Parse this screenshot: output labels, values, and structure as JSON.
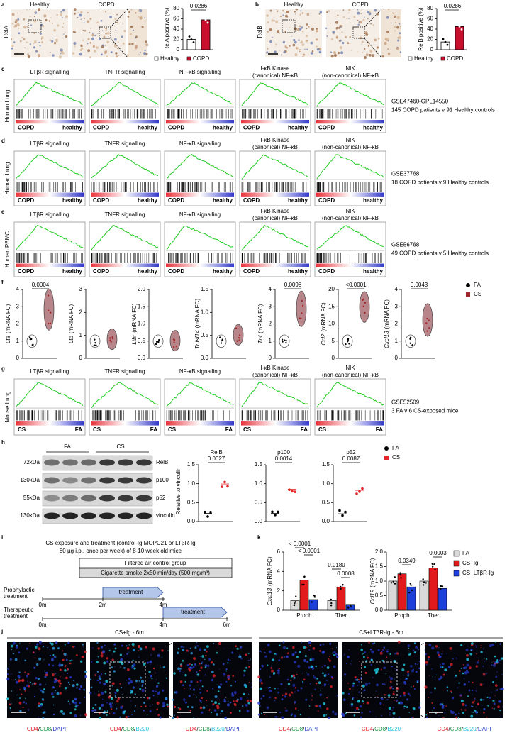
{
  "a": {
    "label": "a",
    "row_label": "RelA",
    "image_titles": [
      "Healthy",
      "COPD"
    ],
    "ylabel": "RelA positive (%)",
    "ylim": [
      0,
      80
    ],
    "yticks": [
      0,
      20,
      40,
      60,
      80
    ],
    "series": [
      {
        "name": "Healthy",
        "color": "#ffffff",
        "value": 20
      },
      {
        "name": "COPD",
        "color": "#c8102e",
        "value": 58
      }
    ],
    "pvalue": "0.0286"
  },
  "b": {
    "label": "b",
    "row_label": "RelB",
    "image_titles": [
      "Healthy",
      "COPD"
    ],
    "ylabel": "RelB positive (%)",
    "ylim": [
      0,
      80
    ],
    "yticks": [
      0,
      20,
      40,
      60,
      80
    ],
    "series": [
      {
        "name": "Healthy",
        "color": "#ffffff",
        "value": 15
      },
      {
        "name": "COPD",
        "color": "#c8102e",
        "value": 45
      }
    ],
    "pvalue": "0.0286"
  },
  "c": {
    "label": "c",
    "row_label": "Human Lung",
    "titles": [
      [
        "LTβR signalling"
      ],
      [
        "TNFR signalling"
      ],
      [
        "NF-κB signalling"
      ],
      [
        "I-κB Kinase",
        "(canonical) NF-κB"
      ],
      [
        "NIK",
        "(non-canonical) NF-κB"
      ]
    ],
    "groups": [
      "COPD",
      "healthy"
    ],
    "dataset": "GSE47460-GPL14550",
    "description": "145 COPD patients v 91 Healthy controls"
  },
  "d": {
    "label": "d",
    "row_label": "Human Lung",
    "titles": [
      [
        "LTβR signalling"
      ],
      [
        "TNFR signalling"
      ],
      [
        "NF-κB signalling"
      ],
      [
        "I-κB Kinase",
        "(canonical) NF-κB"
      ],
      [
        "NIK",
        "(non-canonical) NF-κB"
      ]
    ],
    "groups": [
      "COPD",
      "healthy"
    ],
    "dataset": "GSE37768",
    "description": "18 COPD patients v 9 Healthy controls"
  },
  "e": {
    "label": "e",
    "row_label": "Human PBMC",
    "titles": [
      [
        "LTβR signalling"
      ],
      [
        "TNFR signalling"
      ],
      [
        "NF-κB signalling"
      ],
      [
        "I-κB Kinase",
        "(canonical) NF-κB"
      ],
      [
        "NIK",
        "(non-canonical) NF-κB"
      ]
    ],
    "groups": [
      "COPD",
      "healthy"
    ],
    "dataset": "GSE56768",
    "description": "49 COPD patients v 5 Healthy controls"
  },
  "f": {
    "label": "f",
    "unit": "(mRNA FC)",
    "legend": [
      {
        "name": "FA",
        "color": "#000000"
      },
      {
        "name": "CS",
        "color": "#a0282c"
      }
    ],
    "plots": [
      {
        "gene": "Lta",
        "yticks": [
          0,
          1,
          2,
          3,
          4
        ],
        "pvalue": "0.0004"
      },
      {
        "gene": "Ltb",
        "yticks": [
          0,
          1,
          2,
          3
        ]
      },
      {
        "gene": "Ltbr",
        "yticks": [
          {
            "value": 0,
            "label": "0.0"
          },
          {
            "value": 0.5,
            "label": "0.5"
          },
          {
            "value": 1,
            "label": "1.0"
          },
          {
            "value": 1.5,
            "label": "1.5"
          },
          {
            "value": 2,
            "label": "2.0"
          }
        ]
      },
      {
        "gene": "Tnfsf14",
        "yticks": [
          {
            "value": 0,
            "label": "0.0"
          },
          {
            "value": 0.5,
            "label": "0.5"
          },
          {
            "value": 1,
            "label": "1.0"
          },
          {
            "value": 1.5,
            "label": "1.5"
          }
        ]
      },
      {
        "gene": "Tnf",
        "yticks": [
          0,
          1,
          2,
          3,
          4
        ],
        "pvalue": "0.0098"
      },
      {
        "gene": "Ccl2",
        "yticks": [
          0,
          5,
          10,
          15,
          20
        ],
        "pvalue": "<0.0001"
      },
      {
        "gene": "Cxcl13",
        "yticks": [
          0,
          1,
          2,
          3,
          4
        ],
        "pvalue": "0.0043"
      }
    ]
  },
  "g": {
    "label": "g",
    "row_label": "Mouse Lung",
    "titles": [
      [
        "LTβR signalling"
      ],
      [
        "TNFR signalling"
      ],
      [
        "NF-κB signalling"
      ],
      [
        "I-κB Kinase",
        "(canonical) NF-κB"
      ],
      [
        "NIK",
        "(non-canonical) NF-κB"
      ]
    ],
    "groups": [
      "CS",
      "FA"
    ],
    "dataset": "GSE52509",
    "description": "3 FA v 6 CS-exposed mice"
  },
  "h": {
    "label": "h",
    "groups": [
      "FA",
      "CS"
    ],
    "markers": [
      "72kDa",
      "130kDa",
      "55kDa",
      "130kDa"
    ],
    "proteins": [
      "RelB",
      "p100",
      "p52",
      "vinculin"
    ],
    "ylabel": "Relative to vinculin",
    "ylim": [
      0,
      1.5
    ],
    "yticks": [
      {
        "value": 0,
        "label": "0.0"
      },
      {
        "value": 0.5,
        "label": "0.5"
      },
      {
        "value": 1,
        "label": "1.0"
      },
      {
        "value": 1.5,
        "label": "1.5"
      }
    ],
    "plots": [
      {
        "title": "RelB",
        "pvalue": "0.0027"
      },
      {
        "title": "p100",
        "pvalue": "0.0014"
      },
      {
        "title": "p52",
        "pvalue": "0.0087"
      }
    ],
    "legend": [
      {
        "name": "FA",
        "color": "#000000"
      },
      {
        "name": "CS",
        "color": "#e3262b"
      }
    ]
  },
  "i": {
    "label": "i",
    "heading": [
      "CS exposure and treatment (control-Ig MOPC21 or LTβR-Ig",
      "80 µg i.p., once per week) of 8-10 week old mice"
    ],
    "boxes": [
      "Filtered air control group",
      "Cigarette smoke 2x50 min/day (500 mg/m³)"
    ],
    "schemes": [
      {
        "name": [
          "Prophylactic",
          "treatment"
        ],
        "times": [
          "0m",
          "2m",
          "4m"
        ],
        "arrow": "treatment"
      },
      {
        "name": [
          "Therapeutic",
          "treatment"
        ],
        "times": [
          "0m",
          "4m",
          "6m"
        ],
        "arrow": "treatment"
      }
    ]
  },
  "k": {
    "label": "k",
    "categories": [
      "Proph.",
      "Ther."
    ],
    "series": [
      {
        "name": "FA",
        "color": "#d9d9d9"
      },
      {
        "name": "CS+Ig",
        "color": "#e31a1c"
      },
      {
        "name": "CS+LTβR-Ig",
        "color": "#1f3fdb"
      }
    ],
    "charts": [
      {
        "gene": "Cxcl13",
        "unit": "(mRNA FC)",
        "ylim": [
          0,
          6
        ],
        "yticks": [
          0,
          2,
          4,
          6
        ],
        "values": [
          [
            1,
            3.1,
            1.1
          ],
          [
            1,
            2.4,
            0.6
          ]
        ],
        "pvalues": [
          "< 0.0001",
          "< 0.0001",
          "0.0180",
          "0.0008"
        ]
      },
      {
        "gene": "Ccl19",
        "unit": "(mRNA FC)",
        "ylim": [
          0,
          2
        ],
        "yticks": [
          {
            "value": 0,
            "label": "0.0"
          },
          {
            "value": 0.5,
            "label": "0.5"
          },
          {
            "value": 1,
            "label": "1.0"
          },
          {
            "value": 1.5,
            "label": "1.5"
          },
          {
            "value": 2,
            "label": "2.0"
          }
        ],
        "values": [
          [
            1,
            1.25,
            0.8
          ],
          [
            1,
            1.45,
            0.75
          ]
        ],
        "pvalues": [
          "0.0349",
          "0.0003"
        ]
      }
    ]
  },
  "j": {
    "label": "j",
    "conditions": [
      "CS+Ig - 6m",
      "CS+LTβR-Ig - 6m"
    ],
    "captions": [
      [
        {
          "text": "CD4",
          "color": "#e8212b"
        },
        {
          "text": "/",
          "color": "#000000"
        },
        {
          "text": "CD8",
          "color": "#1a9641"
        },
        {
          "text": "/",
          "color": "#000000"
        },
        {
          "text": "DAPI",
          "color": "#2b3fc9"
        }
      ],
      [
        {
          "text": "CD4",
          "color": "#e8212b"
        },
        {
          "text": "/",
          "color": "#000000"
        },
        {
          "text": "CD8",
          "color": "#1a9641"
        },
        {
          "text": "/",
          "color": "#000000"
        },
        {
          "text": "B220",
          "color": "#27c4e0"
        }
      ],
      [
        {
          "text": "CD4",
          "color": "#e8212b"
        },
        {
          "text": "/",
          "color": "#000000"
        },
        {
          "text": "CD8",
          "color": "#1a9641"
        },
        {
          "text": "/",
          "color": "#000000"
        },
        {
          "text": "B220",
          "color": "#27c4e0"
        },
        {
          "text": "/",
          "color": "#000000"
        },
        {
          "text": "DAPI",
          "color": "#2b3fc9"
        }
      ]
    ]
  }
}
